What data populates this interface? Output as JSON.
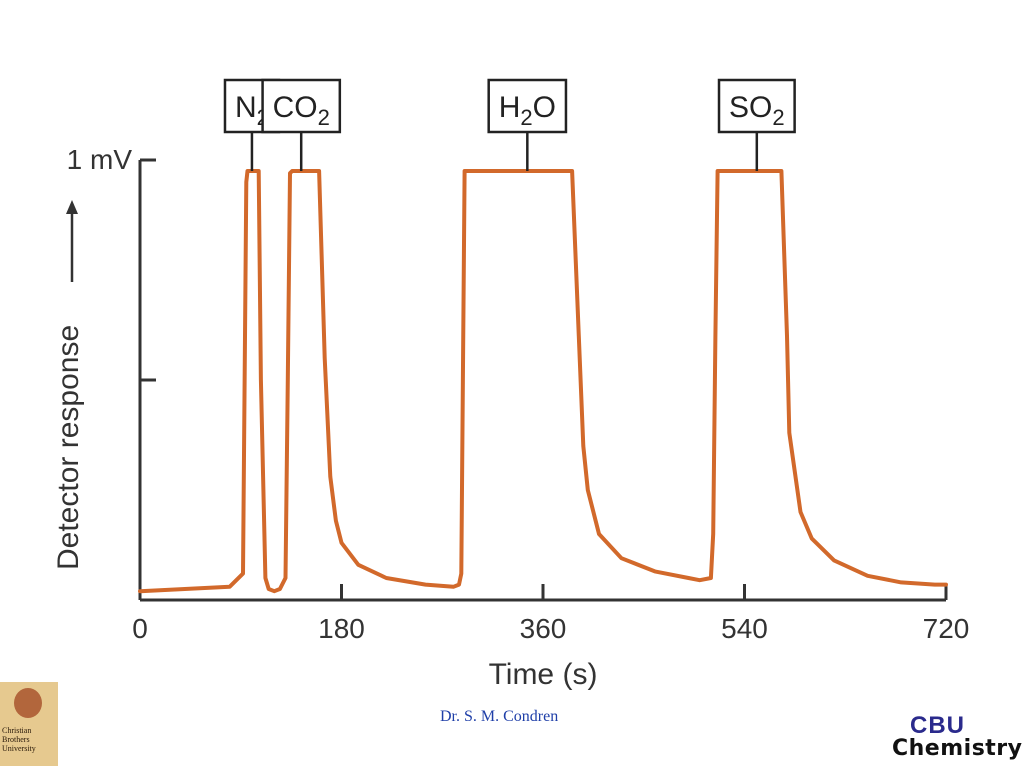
{
  "chart_data": {
    "type": "line",
    "title": "",
    "xlabel": "Time (s)",
    "ylabel": "Detector response",
    "xlim": [
      0,
      720
    ],
    "ylim": [
      0,
      1
    ],
    "x_ticks": [
      0,
      180,
      360,
      540,
      720
    ],
    "y_ticks": [
      {
        "value": 1,
        "label": "1 mV"
      },
      {
        "value": 0.5,
        "label": ""
      }
    ],
    "line_color": "#d2692b",
    "series": [
      {
        "x": [
          0,
          40,
          80,
          92,
          95,
          96,
          106,
          108,
          112,
          115,
          120,
          125,
          130,
          132,
          134,
          136,
          160,
          165,
          170,
          175,
          180,
          195,
          220,
          255,
          280,
          285,
          287,
          290,
          306,
          386,
          392,
          396,
          400,
          410,
          430,
          460,
          490,
          500,
          510,
          512,
          514,
          516,
          528,
          573,
          578,
          580,
          590,
          600,
          620,
          650,
          680,
          710,
          720
        ],
        "y": [
          0.02,
          0.025,
          0.03,
          0.06,
          0.95,
          0.975,
          0.975,
          0.5,
          0.05,
          0.025,
          0.02,
          0.025,
          0.05,
          0.5,
          0.97,
          0.975,
          0.975,
          0.55,
          0.28,
          0.18,
          0.13,
          0.08,
          0.05,
          0.035,
          0.03,
          0.035,
          0.06,
          0.975,
          0.975,
          0.975,
          0.6,
          0.35,
          0.25,
          0.15,
          0.095,
          0.065,
          0.05,
          0.045,
          0.05,
          0.15,
          0.6,
          0.975,
          0.975,
          0.975,
          0.6,
          0.38,
          0.2,
          0.14,
          0.09,
          0.055,
          0.04,
          0.035,
          0.035
        ]
      }
    ],
    "peak_labels": [
      {
        "label": "N",
        "sub": "2",
        "suffix": "",
        "x": 100
      },
      {
        "label": "CO",
        "sub": "2",
        "suffix": "",
        "x": 144
      },
      {
        "label": "H",
        "sub": "2",
        "suffix": "O",
        "x": 346
      },
      {
        "label": "SO",
        "sub": "2",
        "suffix": "",
        "x": 551
      }
    ],
    "grid": false,
    "legend": "none"
  },
  "footer": {
    "author": "Dr. S. M. Condren",
    "left_logo_text": [
      "Christian",
      "Brothers",
      "University"
    ],
    "right_logo_top": "CBU",
    "right_logo_bottom": "Chemistry"
  }
}
